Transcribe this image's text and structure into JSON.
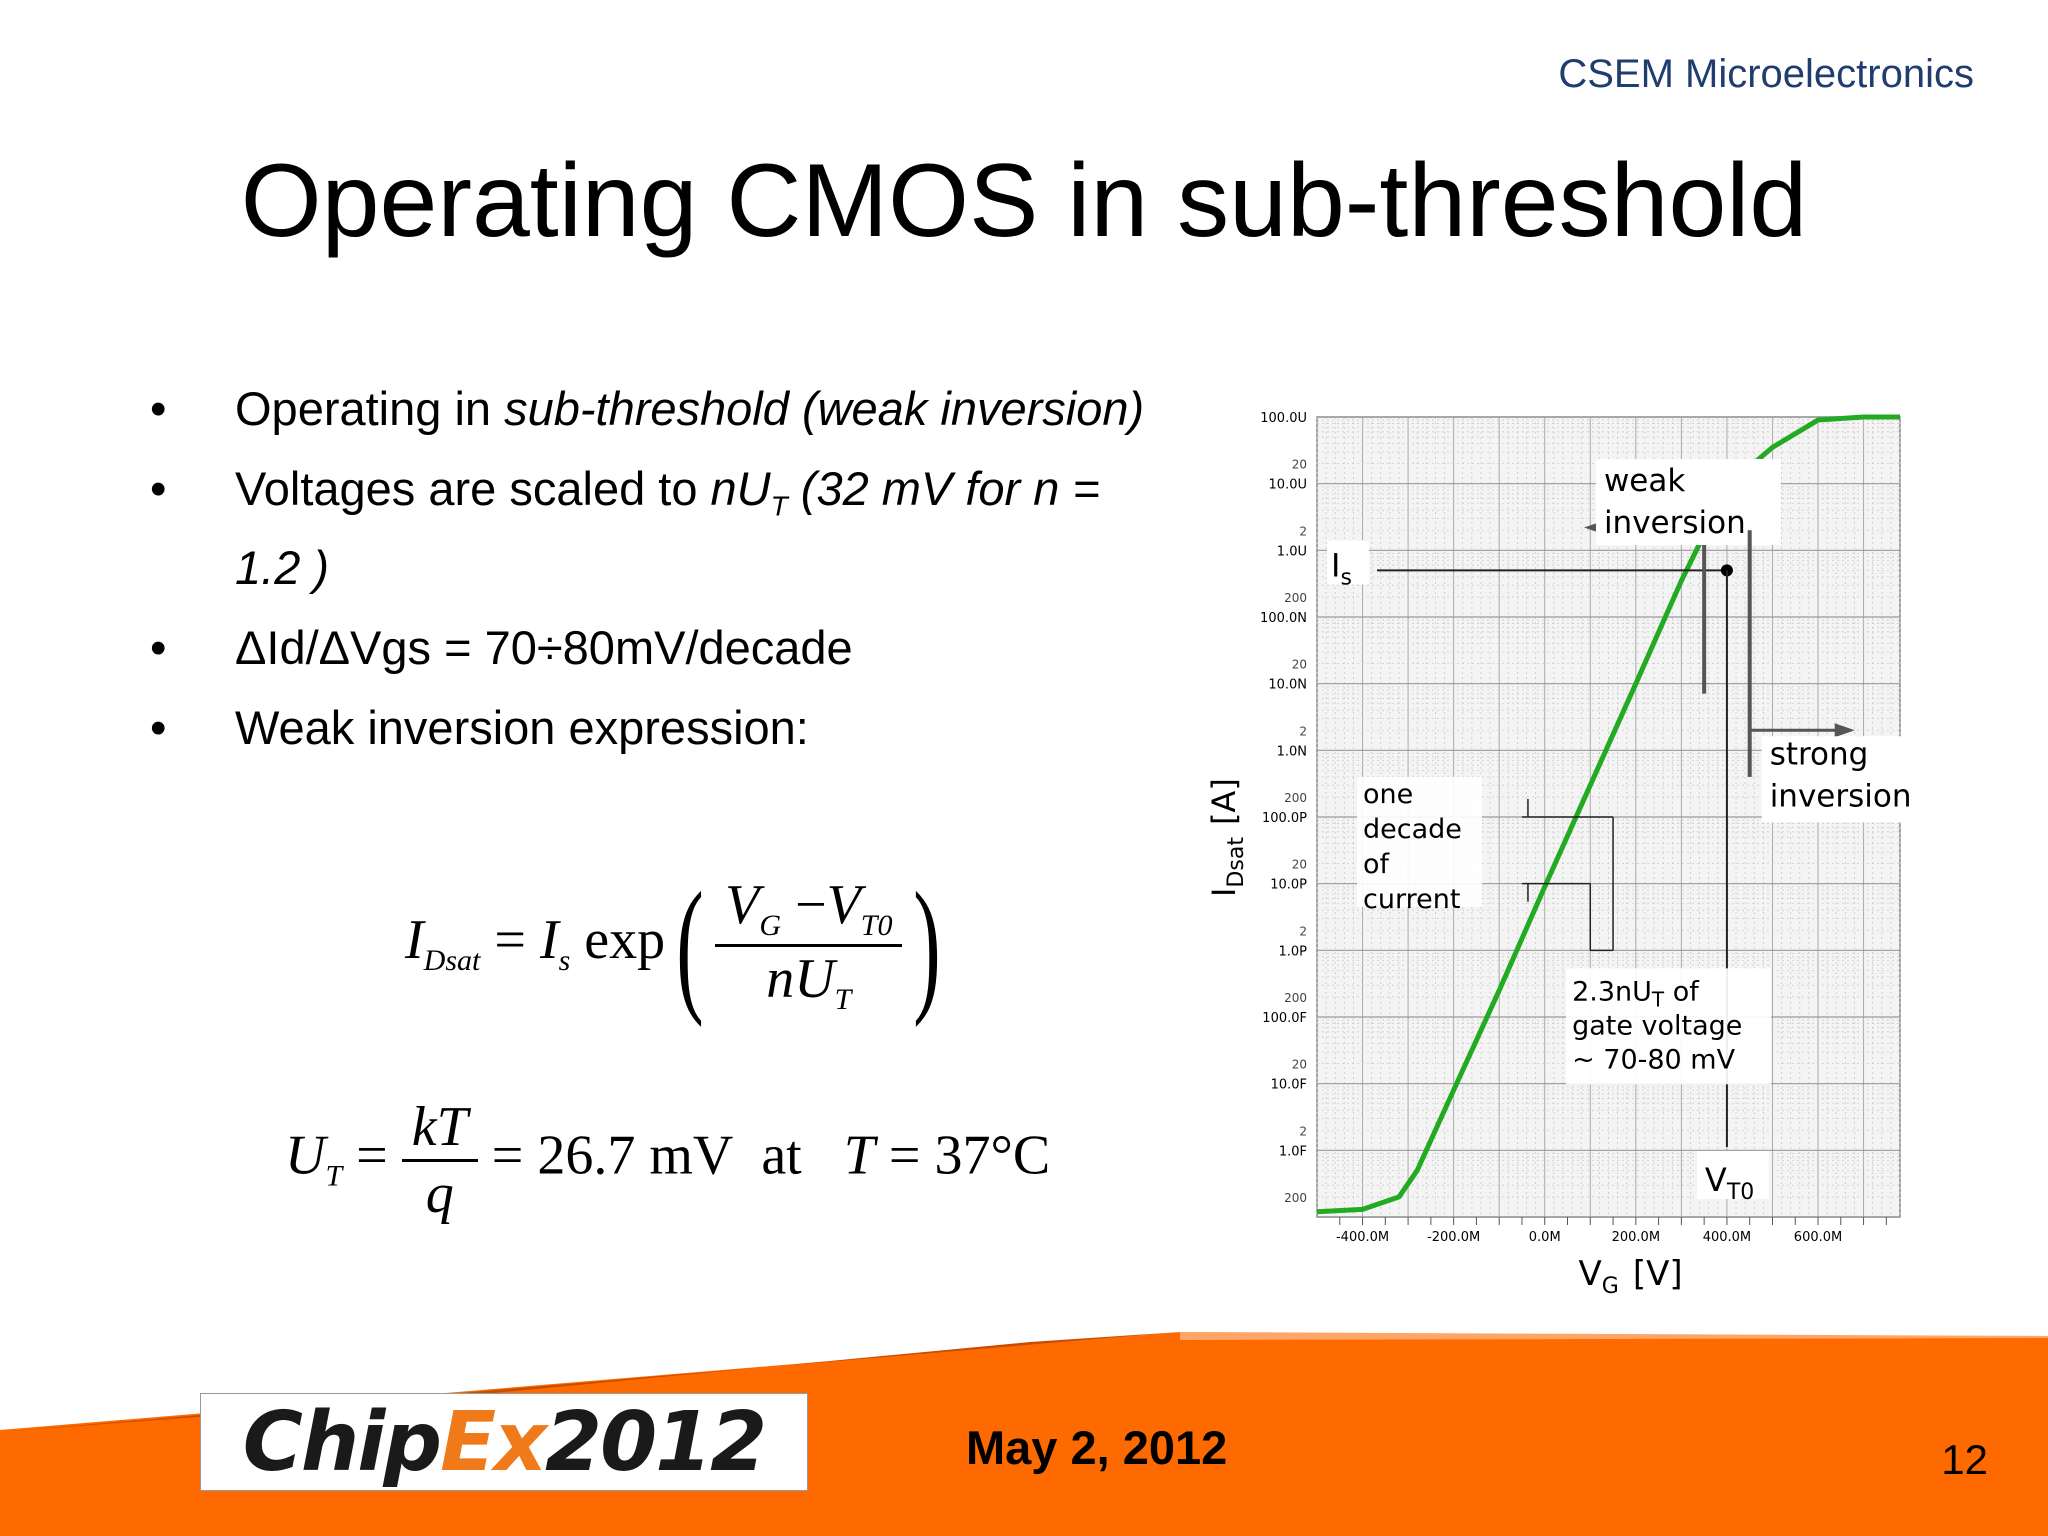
{
  "header": {
    "org": "CSEM Microelectronics",
    "title": "Operating CMOS in sub-threshold"
  },
  "bullets": [
    {
      "text": "Operating in ",
      "italic": "sub-threshold (weak inversion)"
    },
    {
      "text": "Voltages are scaled to ",
      "italic": "nU",
      "italic_sub": "T",
      "italic_after": " (32 mV for n = 1.2 )"
    },
    {
      "text": "ΔId/ΔVgs = 70÷80mV/decade"
    },
    {
      "text": "Weak inversion expression:"
    }
  ],
  "equations": {
    "eq1": {
      "lhs": "I",
      "lhs_sub": "Dsat",
      "eq": "=",
      "is": "I",
      "is_sub": "s",
      "fn": "exp",
      "num_a": "V",
      "num_a_sub": "G",
      "minus": "−",
      "num_b": "V",
      "num_b_sub": "T0",
      "den": "nU",
      "den_sub": "T"
    },
    "eq2": {
      "lhs": "U",
      "lhs_sub": "T",
      "eq": "=",
      "num": "kT",
      "den": "q",
      "eq2": "=",
      "value": "26.7 mV",
      "at": "at",
      "t": "T",
      "tval": "= 37°C"
    }
  },
  "chart_data": {
    "type": "line",
    "xlabel": "V",
    "xlabel_sub": "G",
    "xlabel_unit": "[V]",
    "ylabel": "I",
    "ylabel_sub": "Dsat",
    "ylabel_unit": "[A]",
    "y_scale": "log",
    "xlim": [
      -0.5,
      0.78
    ],
    "ylim": [
      1e-16,
      0.0001
    ],
    "x_ticks": [
      "-400.0M",
      "-200.0M",
      "0.0M",
      "200.0M",
      "400.0M",
      "600.0M"
    ],
    "y_ticks": [
      "100.0U",
      "10.0U",
      "1.0U",
      "100.0N",
      "10.0N",
      "1.0N",
      "100.0P",
      "10.0P",
      "1.0P",
      "100.0F",
      "10.0F",
      "1.0F"
    ],
    "y_minor_labels": [
      "20",
      "2",
      "200"
    ],
    "series": [
      {
        "color": "#22aa22",
        "x": [
          -0.5,
          -0.4,
          -0.32,
          -0.28,
          -0.24,
          -0.2,
          -0.1,
          0.0,
          0.1,
          0.2,
          0.3,
          0.38,
          0.42,
          0.5,
          0.6,
          0.7,
          0.78
        ],
        "y": [
          1.2e-16,
          1.3e-16,
          2e-16,
          5e-16,
          2e-15,
          8e-15,
          2.5e-13,
          9e-12,
          3e-10,
          1e-08,
          3.5e-07,
          4.5e-06,
          1.2e-05,
          3.5e-05,
          9e-05,
          0.0002,
          0.0003
        ]
      }
    ],
    "grid": true,
    "annotations": {
      "weak_inversion": [
        "weak",
        "inversion"
      ],
      "strong_inversion": [
        "strong",
        "inversion"
      ],
      "is_label": "I",
      "is_label_sub": "s",
      "decade": [
        "one",
        "decade",
        "of",
        "current"
      ],
      "gate": [
        "2.3nU",
        "T",
        " of",
        "gate voltage",
        "~ 70-80 mV"
      ],
      "vt0": "V",
      "vt0_sub": "T0"
    }
  },
  "footer": {
    "logo_a": "Chip",
    "logo_b": "Ex",
    "logo_c": "2012",
    "date": "May 2, 2012",
    "page": "12"
  }
}
